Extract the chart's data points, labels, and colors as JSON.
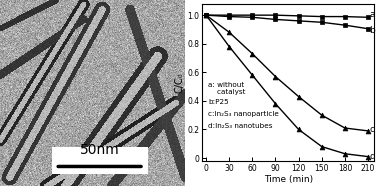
{
  "time": [
    0,
    30,
    60,
    90,
    120,
    150,
    180,
    210
  ],
  "series_a": [
    1.0,
    1.0,
    1.0,
    1.0,
    0.995,
    0.99,
    0.99,
    0.985
  ],
  "series_b": [
    1.0,
    0.99,
    0.985,
    0.97,
    0.96,
    0.95,
    0.93,
    0.905
  ],
  "series_c": [
    1.0,
    0.88,
    0.73,
    0.57,
    0.43,
    0.3,
    0.21,
    0.19
  ],
  "series_d": [
    1.0,
    0.78,
    0.58,
    0.38,
    0.2,
    0.08,
    0.03,
    0.01
  ],
  "xlabel": "Time (min)",
  "ylabel": "C/C₀",
  "xticks": [
    0,
    30,
    60,
    90,
    120,
    150,
    180,
    210
  ],
  "yticks": [
    0,
    0.2,
    0.4,
    0.6,
    0.8,
    1.0
  ],
  "ytick_labels": [
    "0",
    "0.2",
    "0.4",
    "0.6",
    "0.8",
    "1.0"
  ],
  "label_a": "a: without\n    catalyst",
  "label_b": "b:P25",
  "label_c": "c:In₂S₃ nanoparticle",
  "label_d": "d:In₂S₃ nanotubes",
  "series_labels": [
    "a",
    "b",
    "c",
    "d"
  ],
  "scalebar_text": "50nm",
  "marker_a": "s",
  "marker_b": "s",
  "marker_c": "^",
  "marker_d": "^",
  "img_bg_mean": 0.65,
  "img_bg_std": 0.08,
  "tubes": [
    [
      0.05,
      0.95,
      0.55,
      0.05,
      8,
      0.18
    ],
    [
      0.0,
      0.75,
      0.45,
      0.02,
      6,
      0.12
    ],
    [
      0.35,
      1.0,
      0.85,
      0.3,
      10,
      0.15
    ],
    [
      0.25,
      1.0,
      0.95,
      0.55,
      7,
      0.1
    ],
    [
      0.6,
      1.0,
      1.0,
      0.5,
      5,
      0.2
    ],
    [
      0.0,
      0.4,
      0.45,
      0.1,
      4,
      0.18
    ],
    [
      0.7,
      0.05,
      1.0,
      0.95,
      5,
      0.22
    ],
    [
      0.0,
      0.15,
      0.3,
      0.0,
      3,
      0.16
    ]
  ]
}
